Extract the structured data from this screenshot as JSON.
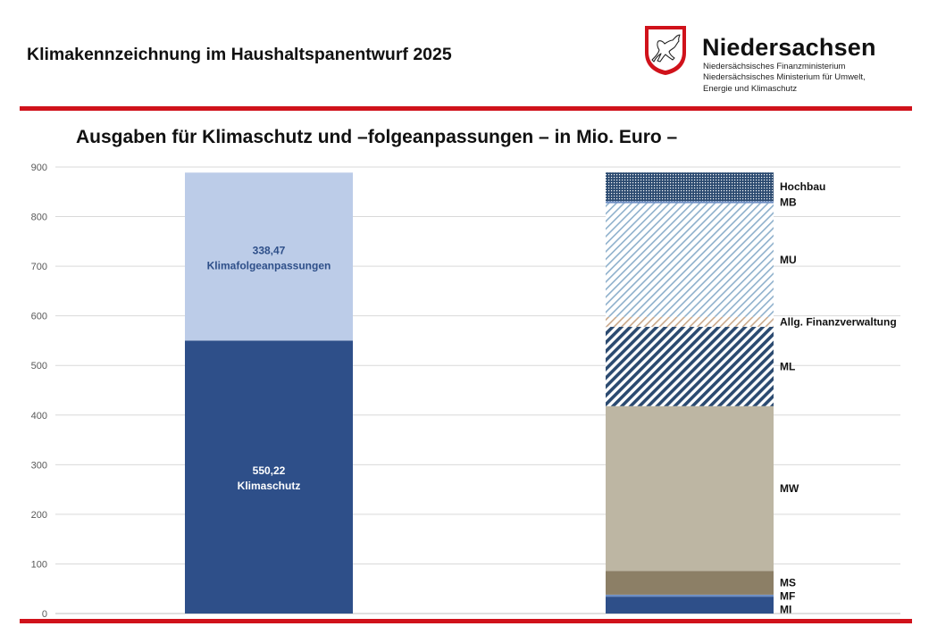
{
  "header": {
    "title": "Klimakennzeichnung im Haushaltspanentwurf 2025",
    "brand": "Niedersachsen",
    "ministries": [
      "Niedersächsisches Finanzministerium",
      "Niedersächsisches Ministerium für Umwelt,",
      "Energie und Klimaschutz"
    ]
  },
  "colors": {
    "accent_red": "#d0121b",
    "klimaschutz": "#2e4f89",
    "klimafolge": "#bccce8",
    "label_dark_blue": "#2e4f89"
  },
  "chart_data": {
    "type": "bar",
    "stacked": true,
    "title": "Ausgaben für Klimaschutz und –folgeanpassungen – in Mio. Euro –",
    "ylim": [
      0,
      900
    ],
    "yticks": [
      0,
      100,
      200,
      300,
      400,
      500,
      600,
      700,
      800,
      900
    ],
    "grid": true,
    "bars": [
      {
        "segments": [
          {
            "name": "Klimaschutz",
            "value": 550.22,
            "value_label": "550,22",
            "color": "#2e4f89",
            "pattern": "solid",
            "label_color": "#ffffff"
          },
          {
            "name": "Klimafolgeanpassungen",
            "value": 338.47,
            "value_label": "338,47",
            "color": "#bccce8",
            "pattern": "solid",
            "label_color": "#2e4f89"
          }
        ]
      },
      {
        "segments": [
          {
            "name": "MI",
            "value": 34,
            "color": "#2e4f89",
            "pattern": "solid"
          },
          {
            "name": "MF",
            "value": 4,
            "color": "#6f8fc4",
            "pattern": "solid"
          },
          {
            "name": "MS",
            "value": 48,
            "color": "#8c7f66",
            "pattern": "solid"
          },
          {
            "name": "MW",
            "value": 332,
            "color": "#bdb6a3",
            "pattern": "solid"
          },
          {
            "name": "ML",
            "value": 160,
            "color": "#2b4a70",
            "pattern": "diagonal-dense"
          },
          {
            "name": "Allg. Finanzverwaltung",
            "value": 20,
            "color": "#c9a88a",
            "pattern": "diagonal-light"
          },
          {
            "name": "MU",
            "value": 229,
            "color": "#8eb0cc",
            "pattern": "diagonal-light"
          },
          {
            "name": "MB",
            "value": 4,
            "color": "#6f8fc4",
            "pattern": "solid"
          },
          {
            "name": "Hochbau",
            "value": 58,
            "color": "#2b4a70",
            "pattern": "dots"
          }
        ]
      }
    ]
  }
}
